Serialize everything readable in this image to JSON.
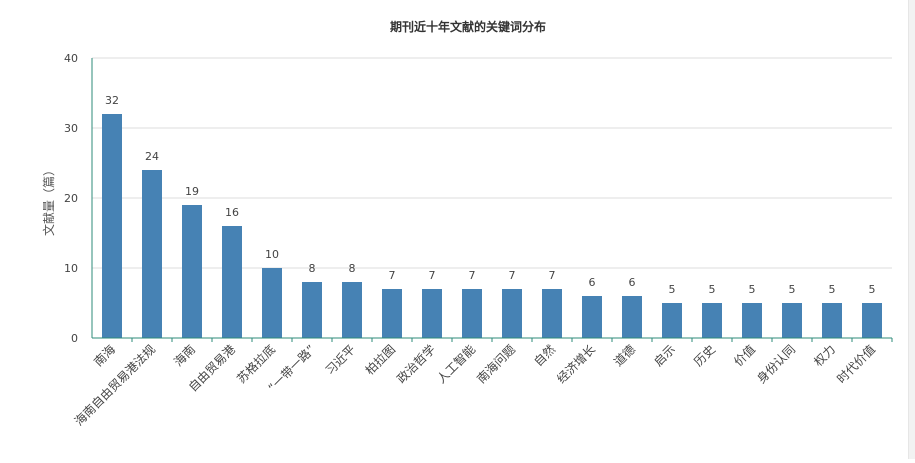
{
  "chart_data": {
    "type": "bar",
    "title": "期刊近十年文献的关键词分布",
    "xlabel": "",
    "ylabel": "文献量（篇）",
    "ylim": [
      0,
      40
    ],
    "yticks": [
      0,
      10,
      20,
      30,
      40
    ],
    "grid": true,
    "legend": "none",
    "bar_color": "#4682b4",
    "axis_color": "#2e8b7a",
    "categories": [
      "南海",
      "海南自由贸易港法规",
      "海南",
      "自由贸易港",
      "苏格拉底",
      "“一带一路”",
      "习近平",
      "柏拉图",
      "政治哲学",
      "人工智能",
      "南海问题",
      "自然",
      "经济增长",
      "道德",
      "启示",
      "历史",
      "价值",
      "身份认同",
      "权力",
      "时代价值"
    ],
    "values": [
      32,
      24,
      19,
      16,
      10,
      8,
      8,
      7,
      7,
      7,
      7,
      7,
      6,
      6,
      5,
      5,
      5,
      5,
      5,
      5
    ]
  }
}
